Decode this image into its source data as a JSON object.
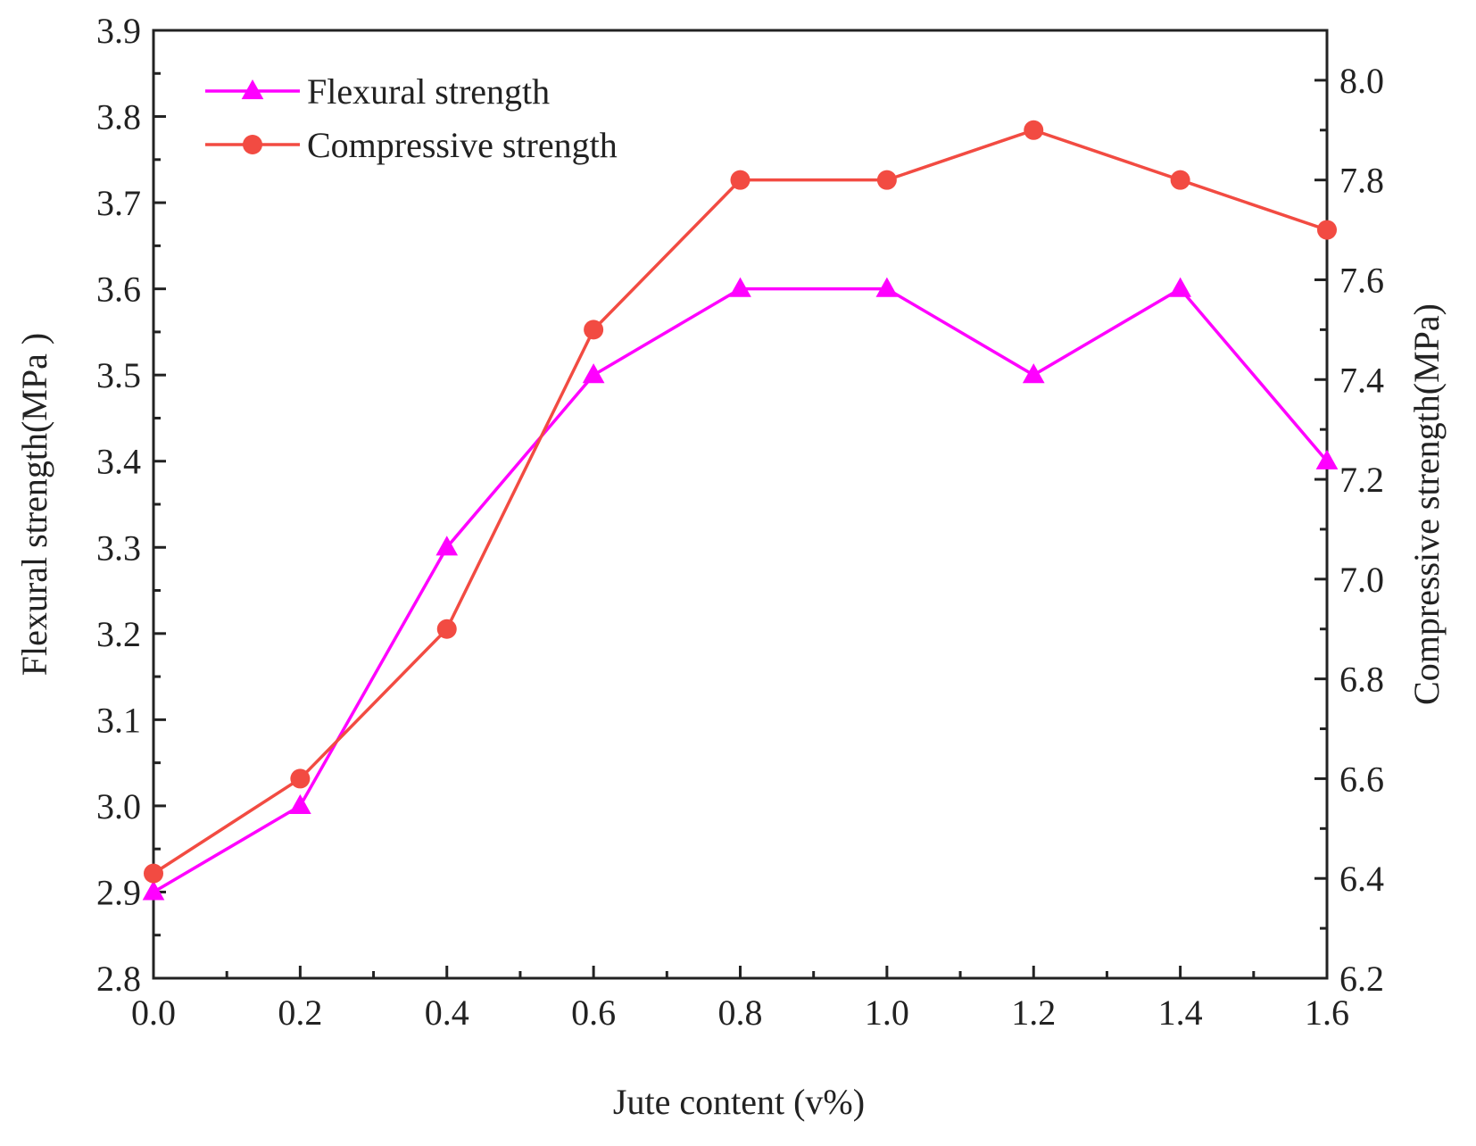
{
  "chart_data": {
    "type": "line",
    "title": "",
    "xlabel": "Jute content (v%)",
    "ylabel_left": "Flexural strength(MPa )",
    "ylabel_right": "Compressive strength(MPa)",
    "x": [
      0.0,
      0.2,
      0.4,
      0.6,
      0.8,
      1.0,
      1.2,
      1.4,
      1.6
    ],
    "xlim": [
      0.0,
      1.6
    ],
    "ylim_left": [
      2.8,
      3.9
    ],
    "ylim_right": [
      6.2,
      8.1
    ],
    "x_ticks": [
      "0.0",
      "0.2",
      "0.4",
      "0.6",
      "0.8",
      "1.0",
      "1.2",
      "1.4",
      "1.6"
    ],
    "y_left_ticks": [
      "2.8",
      "2.9",
      "3.0",
      "3.1",
      "3.2",
      "3.3",
      "3.4",
      "3.5",
      "3.6",
      "3.7",
      "3.8",
      "3.9"
    ],
    "y_right_ticks": [
      "6.2",
      "6.4",
      "6.6",
      "6.8",
      "7.0",
      "7.2",
      "7.4",
      "7.6",
      "7.8",
      "8.0"
    ],
    "grid": false,
    "legend_position": "top-left",
    "series": [
      {
        "name": "Flexural strength",
        "axis": "left",
        "marker": "triangle",
        "color": "#ff00ff",
        "values": [
          2.9,
          3.0,
          3.3,
          3.5,
          3.6,
          3.6,
          3.5,
          3.6,
          3.4
        ]
      },
      {
        "name": "Compressive strength",
        "axis": "right",
        "marker": "circle",
        "color": "#f24b42",
        "values": [
          6.41,
          6.6,
          6.9,
          7.5,
          7.8,
          7.8,
          7.9,
          7.8,
          7.7
        ]
      }
    ]
  }
}
